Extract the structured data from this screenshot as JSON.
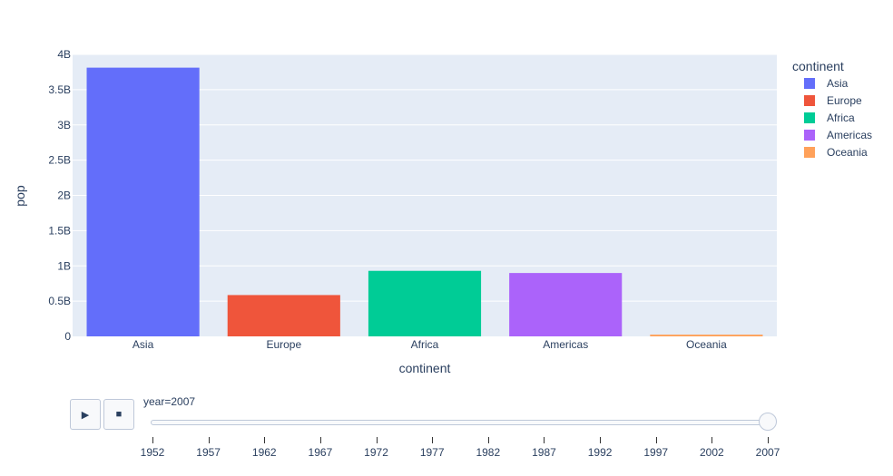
{
  "chart_data": {
    "type": "bar",
    "barmode": "stack",
    "categories": [
      "Asia",
      "Europe",
      "Africa",
      "Americas",
      "Oceania"
    ],
    "values": [
      3811953827,
      586098529,
      929539692,
      898871184,
      24549947
    ],
    "colors": [
      "#636efa",
      "#ef553b",
      "#00cc96",
      "#ab63fa",
      "#ffa15a"
    ],
    "xlabel": "continent",
    "ylabel": "pop",
    "ylim": [
      0,
      4000000000
    ],
    "yticks": [
      {
        "value": 0,
        "label": "0"
      },
      {
        "value": 500000000,
        "label": "0.5B"
      },
      {
        "value": 1000000000,
        "label": "1B"
      },
      {
        "value": 1500000000,
        "label": "1.5B"
      },
      {
        "value": 2000000000,
        "label": "2B"
      },
      {
        "value": 2500000000,
        "label": "2.5B"
      },
      {
        "value": 3000000000,
        "label": "3B"
      },
      {
        "value": 3500000000,
        "label": "3.5B"
      },
      {
        "value": 4000000000,
        "label": "4B"
      }
    ],
    "grid": true,
    "legend": {
      "title": "continent",
      "placement": "right",
      "entries": [
        "Asia",
        "Europe",
        "Africa",
        "Americas",
        "Oceania"
      ]
    }
  },
  "animation": {
    "play_icon": "play-icon",
    "stop_icon": "stop-icon",
    "current_label": "year=2007",
    "steps": [
      "1952",
      "1957",
      "1962",
      "1967",
      "1972",
      "1977",
      "1982",
      "1987",
      "1992",
      "1997",
      "2002",
      "2007"
    ],
    "current_index": 11
  }
}
